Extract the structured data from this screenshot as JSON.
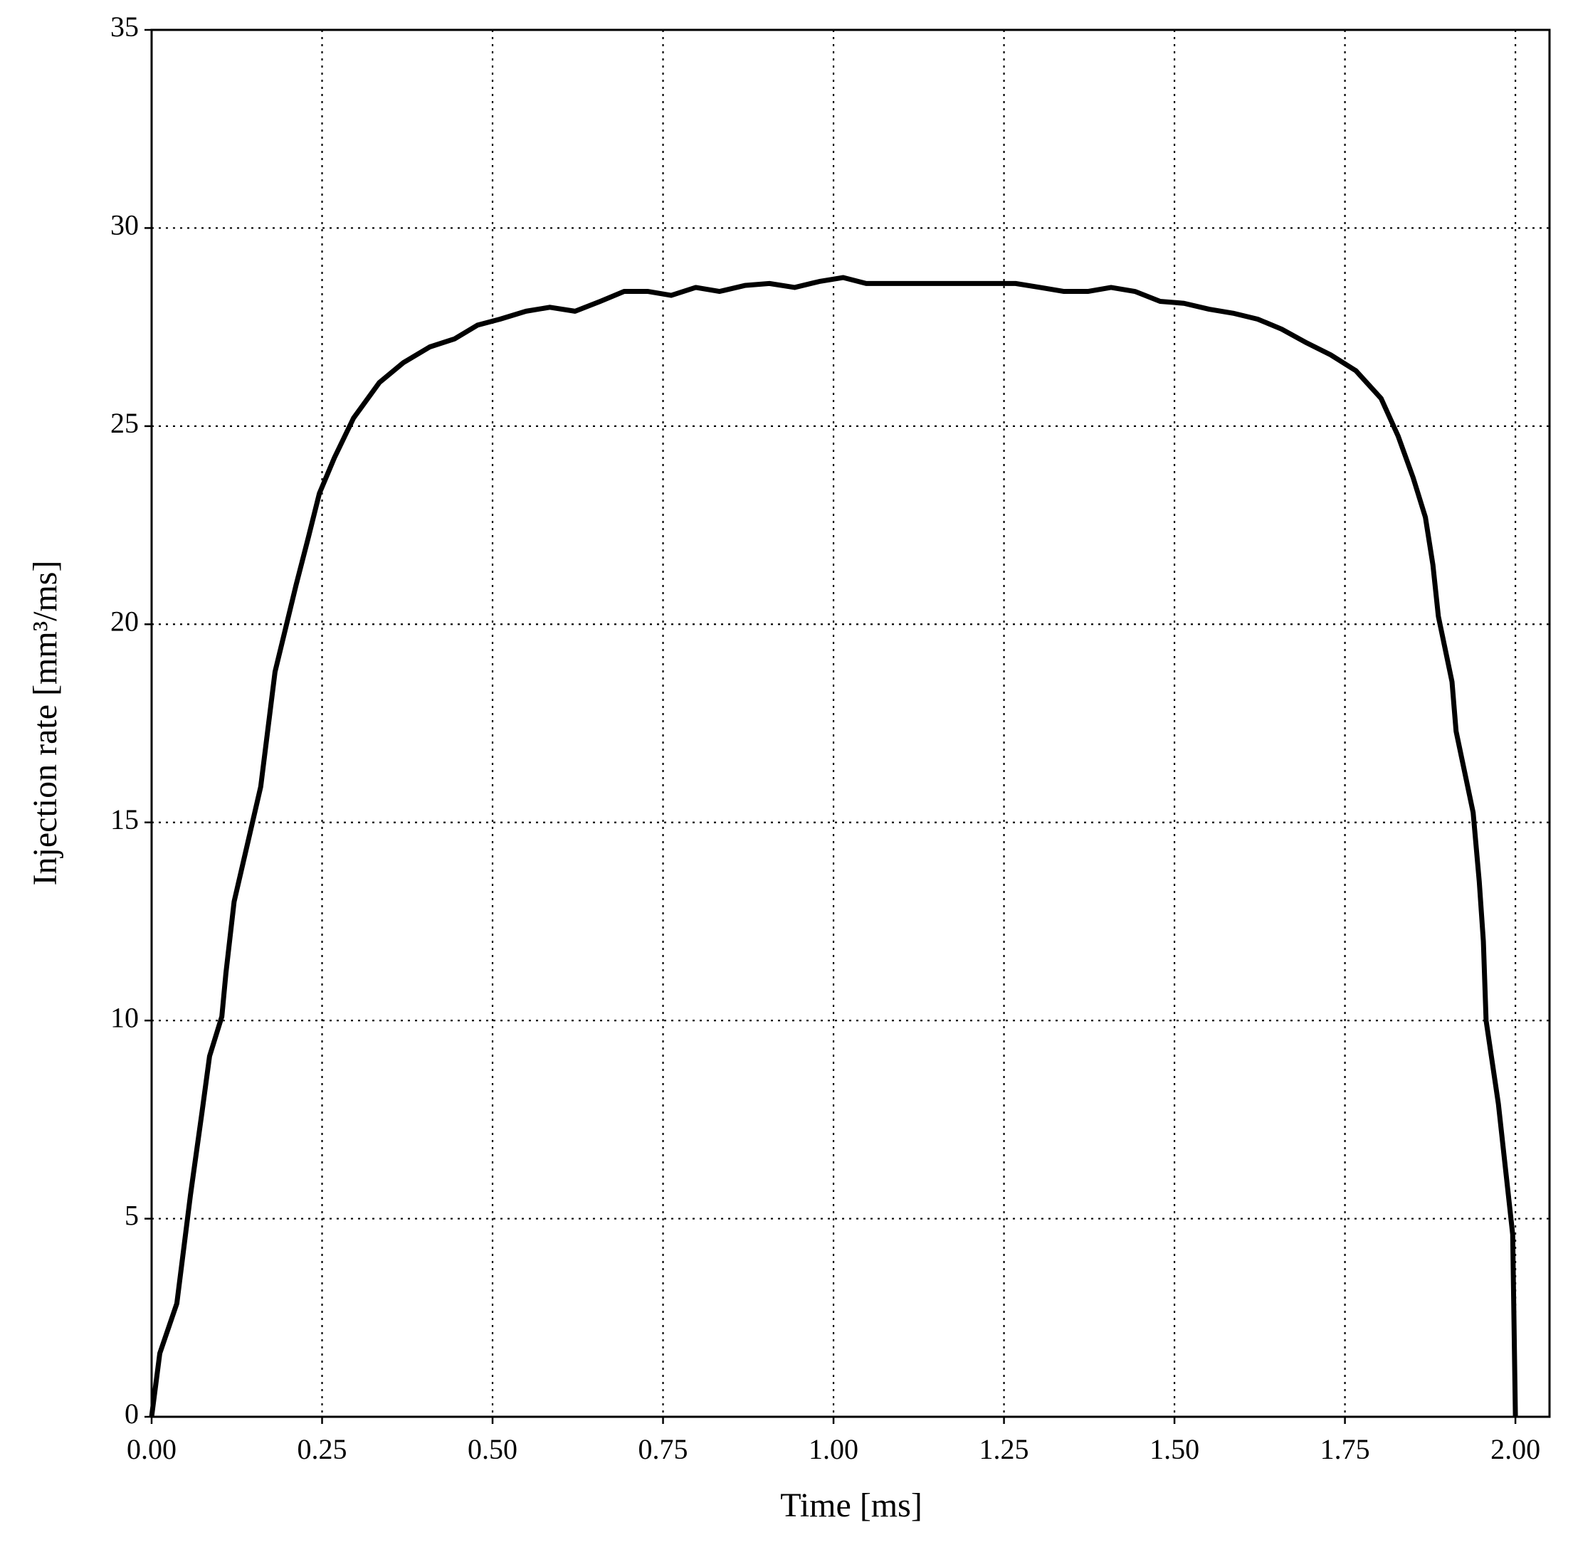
{
  "chart_data": {
    "type": "line",
    "xlabel": "Time [ms]",
    "ylabel": "Injection rate [mm³/ms]",
    "grid": true,
    "xlim": [
      0,
      2.05
    ],
    "ylim": [
      0,
      35
    ],
    "xticks": [
      {
        "value": 0,
        "label": "0.00"
      },
      {
        "value": 0.25,
        "label": "0.25"
      },
      {
        "value": 0.5,
        "label": "0.50"
      },
      {
        "value": 0.75,
        "label": "0.75"
      },
      {
        "value": 1,
        "label": "1.00"
      },
      {
        "value": 1.25,
        "label": "1.25"
      },
      {
        "value": 1.5,
        "label": "1.50"
      },
      {
        "value": 1.75,
        "label": "1.75"
      },
      {
        "value": 2,
        "label": "2.00"
      }
    ],
    "yticks": [
      0,
      5,
      10,
      15,
      20,
      25,
      30,
      35
    ],
    "series": [
      {
        "color": "#000000",
        "x": [
          0,
          0.012,
          0.037,
          0.057,
          0.074,
          0.085,
          0.103,
          0.109,
          0.121,
          0.16,
          0.181,
          0.212,
          0.23,
          0.246,
          0.268,
          0.296,
          0.334,
          0.369,
          0.408,
          0.444,
          0.478,
          0.511,
          0.549,
          0.584,
          0.621,
          0.658,
          0.693,
          0.728,
          0.762,
          0.798,
          0.833,
          0.87,
          0.906,
          0.943,
          0.979,
          1.014,
          1.048,
          1.267,
          1.303,
          1.338,
          1.373,
          1.407,
          1.442,
          1.479,
          1.514,
          1.551,
          1.586,
          1.622,
          1.657,
          1.694,
          1.729,
          1.766,
          1.803,
          1.828,
          1.85,
          1.868,
          1.879,
          1.887,
          1.907,
          1.913,
          1.938,
          1.947,
          1.953,
          1.957,
          1.975,
          1.996,
          2.0
        ],
        "values": [
          0,
          1.6,
          2.86,
          5.6,
          7.7,
          9.1,
          10.1,
          11.2,
          13.0,
          15.9,
          18.8,
          21.0,
          22.2,
          23.3,
          24.2,
          25.2,
          26.1,
          26.6,
          27.0,
          27.2,
          27.55,
          27.7,
          27.9,
          28.0,
          27.9,
          28.15,
          28.4,
          28.4,
          28.3,
          28.5,
          28.4,
          28.55,
          28.6,
          28.5,
          28.65,
          28.75,
          28.6,
          28.6,
          28.5,
          28.4,
          28.4,
          28.5,
          28.4,
          28.15,
          28.1,
          27.95,
          27.85,
          27.7,
          27.45,
          27.1,
          26.8,
          26.4,
          25.7,
          24.75,
          23.7,
          22.7,
          21.5,
          20.2,
          18.55,
          17.3,
          15.25,
          13.5,
          12.0,
          10.0,
          7.9,
          4.6,
          0
        ]
      }
    ]
  }
}
